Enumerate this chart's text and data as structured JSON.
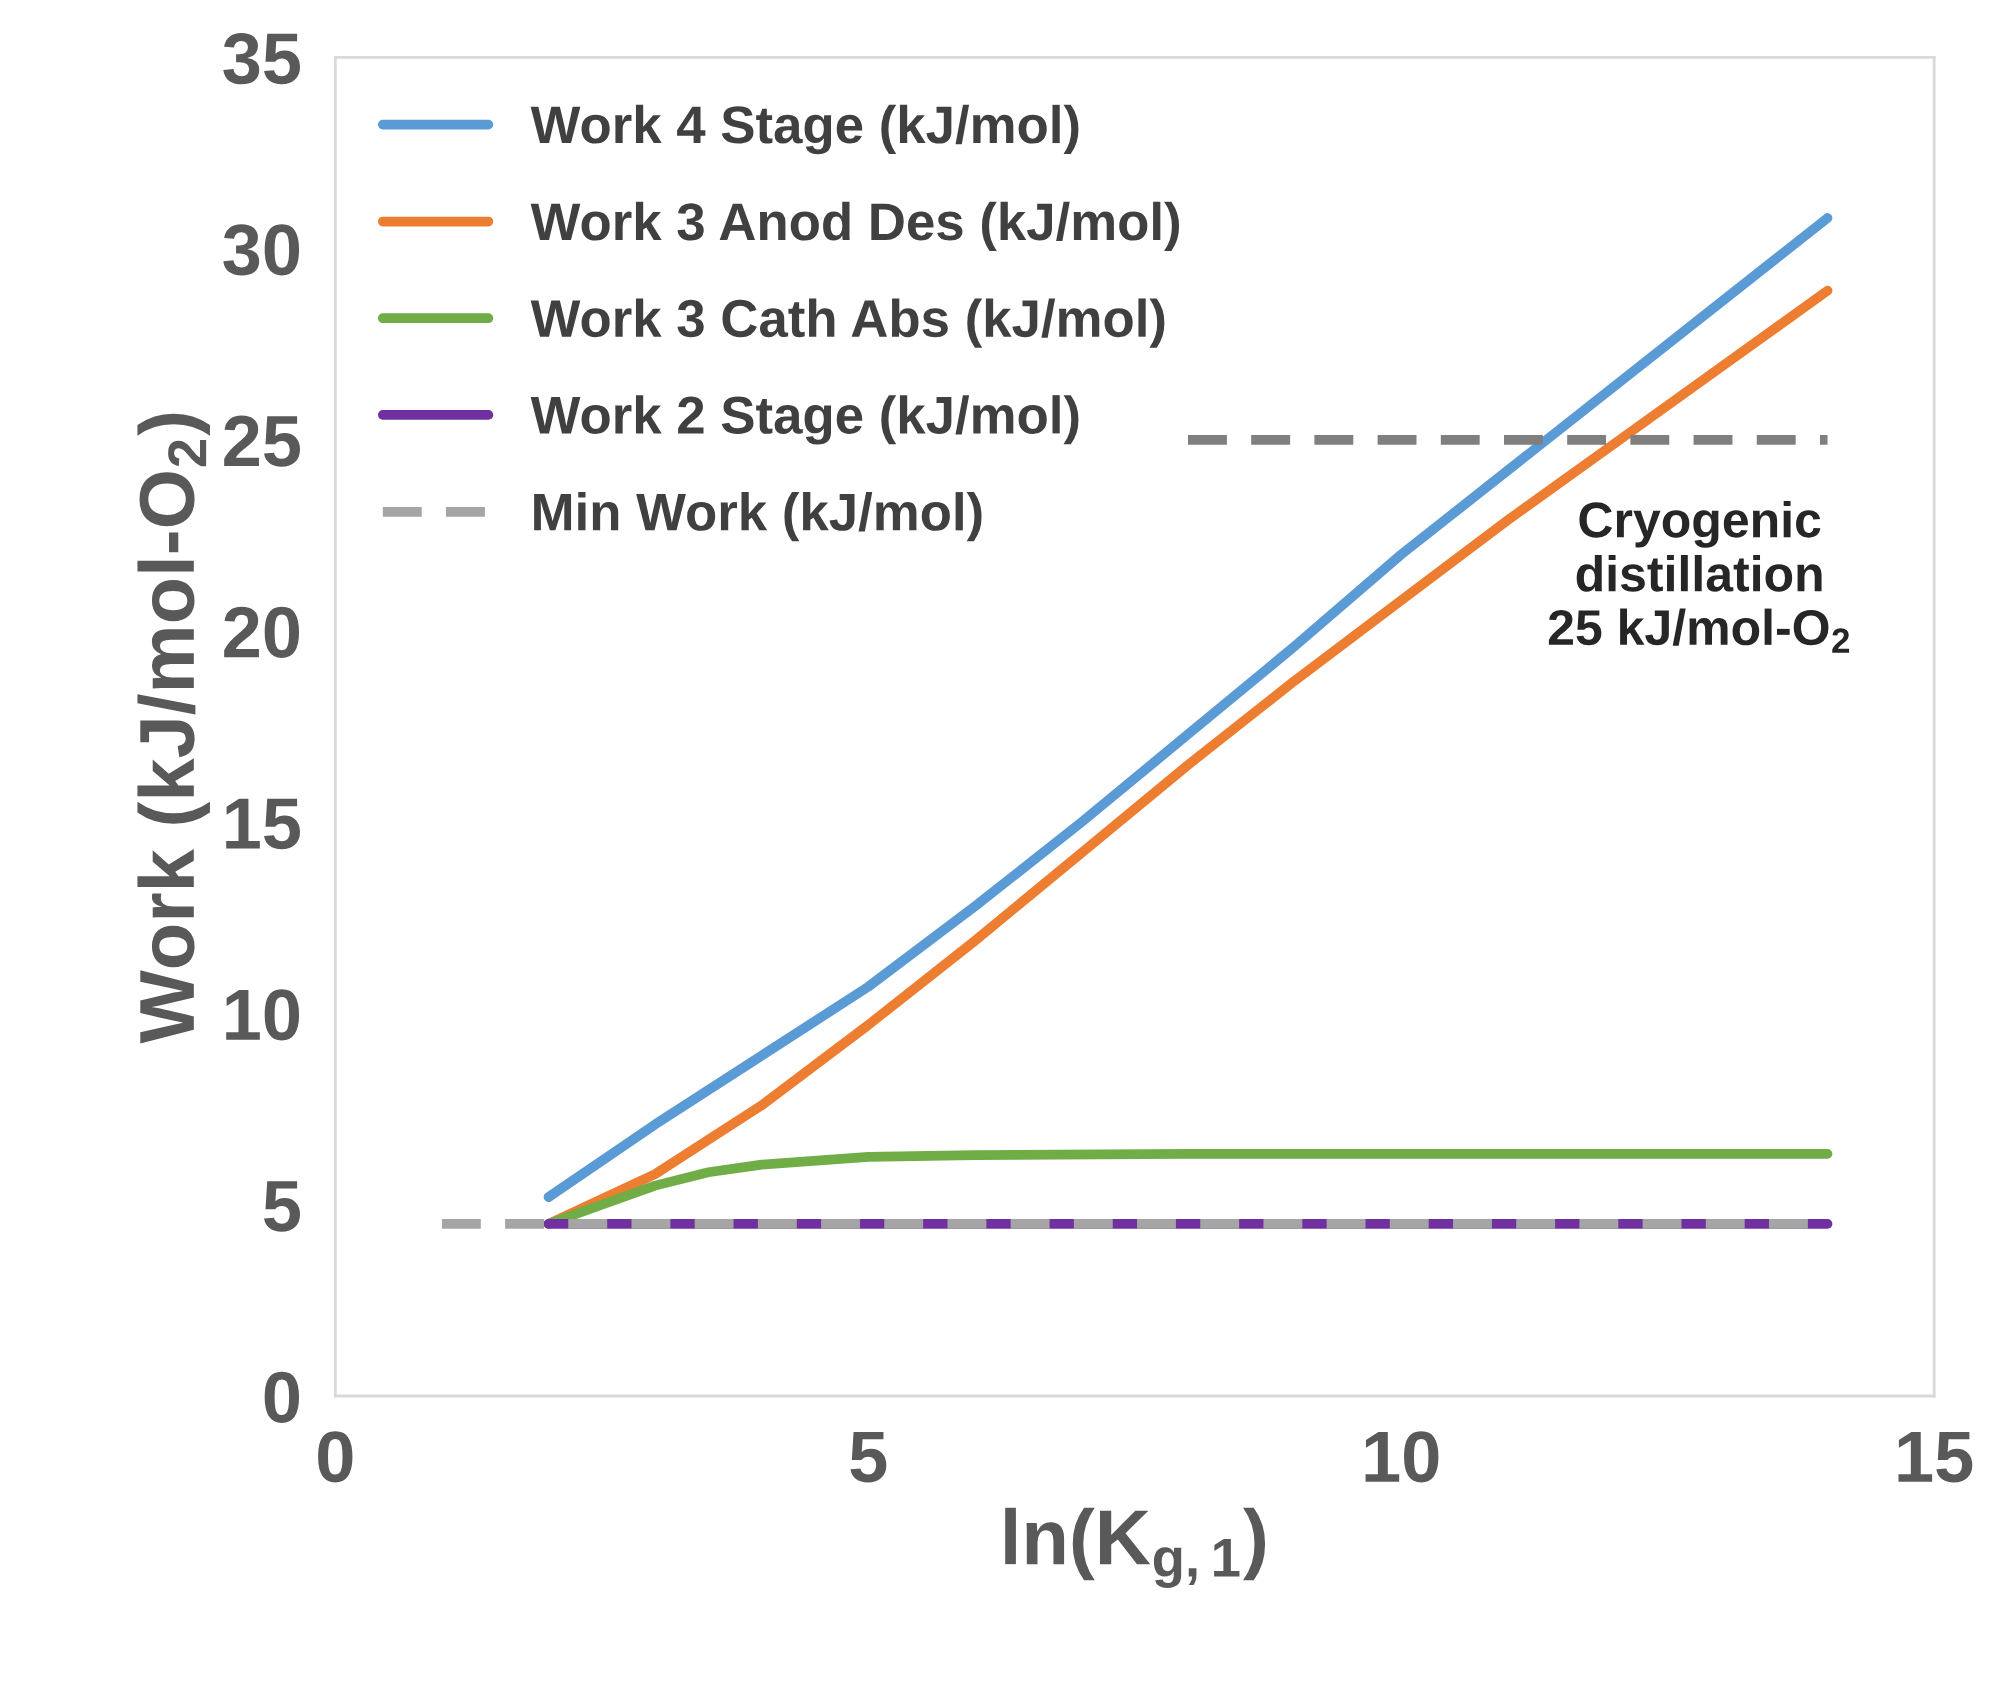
{
  "chart_data": {
    "type": "line",
    "xlabel": "ln(K$_{g,1}$)",
    "ylabel": "Work (kJ/mol-O$_{2}$)",
    "xlim": [
      0,
      15
    ],
    "xticks": [
      0,
      5,
      10,
      15
    ],
    "ylim": [
      0,
      35
    ],
    "yticks": [
      0,
      5,
      10,
      15,
      20,
      25,
      30,
      35
    ],
    "grid": false,
    "legend": "top left",
    "marker": "none",
    "series": [
      {
        "name": "Work 4 Stage (kJ/mol)",
        "color": "#5b9bd5",
        "line_style": "solid",
        "x": [
          2,
          3,
          4,
          5,
          6,
          7,
          8,
          9,
          10,
          11,
          12,
          13,
          14
        ],
        "values": [
          5.2,
          7.1,
          8.9,
          10.7,
          12.8,
          15.0,
          17.3,
          19.6,
          22.0,
          24.2,
          26.4,
          28.6,
          30.8
        ]
      },
      {
        "name": "Work 3 Anod Des (kJ/mol)",
        "color": "#ed7d31",
        "line_style": "solid",
        "x": [
          2,
          3,
          4,
          5,
          6,
          7,
          8,
          9,
          10,
          11,
          12,
          13,
          14
        ],
        "values": [
          4.5,
          5.8,
          7.6,
          9.7,
          11.9,
          14.2,
          16.5,
          18.7,
          20.8,
          22.9,
          24.9,
          26.9,
          28.9
        ]
      },
      {
        "name": "Work 3 Cath Abs (kJ/mol)",
        "color": "#70ad47",
        "line_style": "solid",
        "x": [
          2,
          2.5,
          3,
          3.5,
          4,
          5,
          6,
          8,
          14
        ],
        "values": [
          4.5,
          5.0,
          5.5,
          5.85,
          6.05,
          6.25,
          6.3,
          6.33,
          6.33
        ]
      },
      {
        "name": "Work 2 Stage (kJ/mol)",
        "color": "#7030a0",
        "line_style": "solid",
        "x": [
          2,
          14
        ],
        "values": [
          4.5,
          4.5
        ]
      },
      {
        "name": "Min Work (kJ/mol)",
        "color": "#a5a5a5",
        "line_style": "dashed",
        "x": [
          1,
          14
        ],
        "values": [
          4.5,
          4.5
        ]
      },
      {
        "color": "#7f7f7f",
        "line_style": "dashed",
        "x": [
          8,
          14
        ],
        "values": [
          25,
          25
        ]
      }
    ],
    "annotations": [
      {
        "text": "Cryogenic\ndistillation\n25 kJ/mol-O$_{2}$",
        "x": 12.8,
        "y": 25
      }
    ]
  }
}
